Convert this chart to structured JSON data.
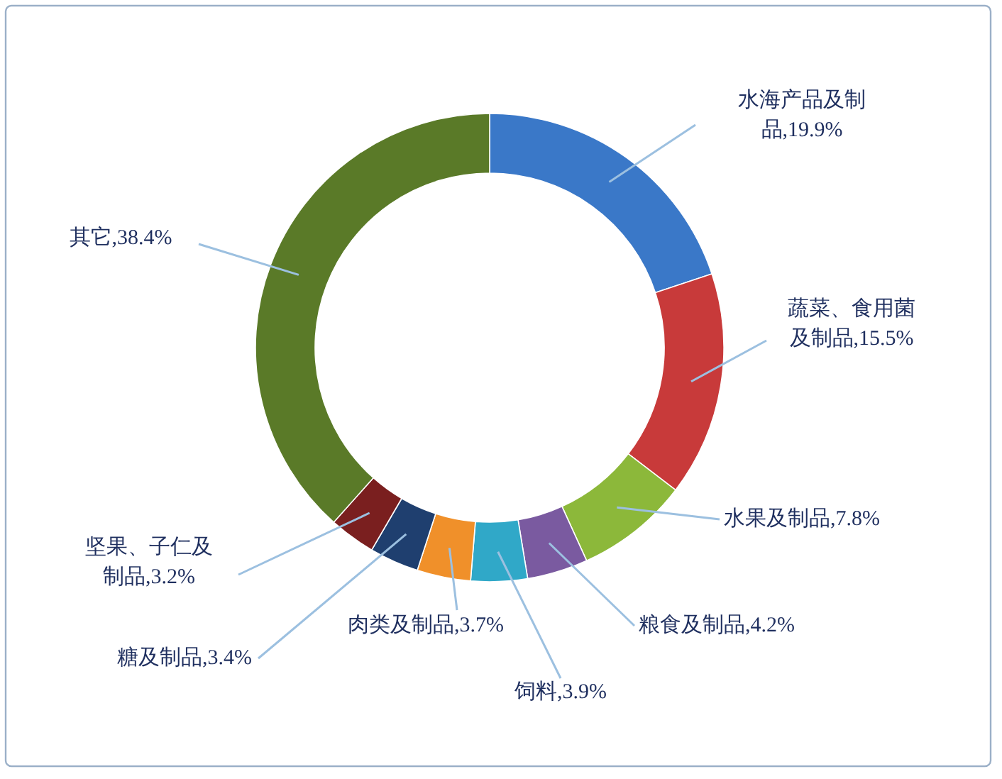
{
  "chart_data": {
    "type": "donut",
    "categories": [
      "水海产品及制品",
      "蔬菜、食用菌及制品",
      "水果及制品",
      "粮食及制品",
      "饲料",
      "肉类及制品",
      "糖及制品",
      "坚果、子仁及制品",
      "其它"
    ],
    "values": [
      19.9,
      15.5,
      7.8,
      4.2,
      3.9,
      3.7,
      3.4,
      3.2,
      38.4
    ],
    "value_labels": [
      "19.9%",
      "15.5%",
      "7.8%",
      "4.2%",
      "3.9%",
      "3.7%",
      "3.4%",
      "3.2%",
      "38.4%"
    ],
    "colors": [
      "#3a78c8",
      "#c83a3a",
      "#8cb83a",
      "#7a5aa0",
      "#30a8c8",
      "#f0902a",
      "#1f3f6f",
      "#7a1f1f",
      "#5a7a28"
    ]
  }
}
